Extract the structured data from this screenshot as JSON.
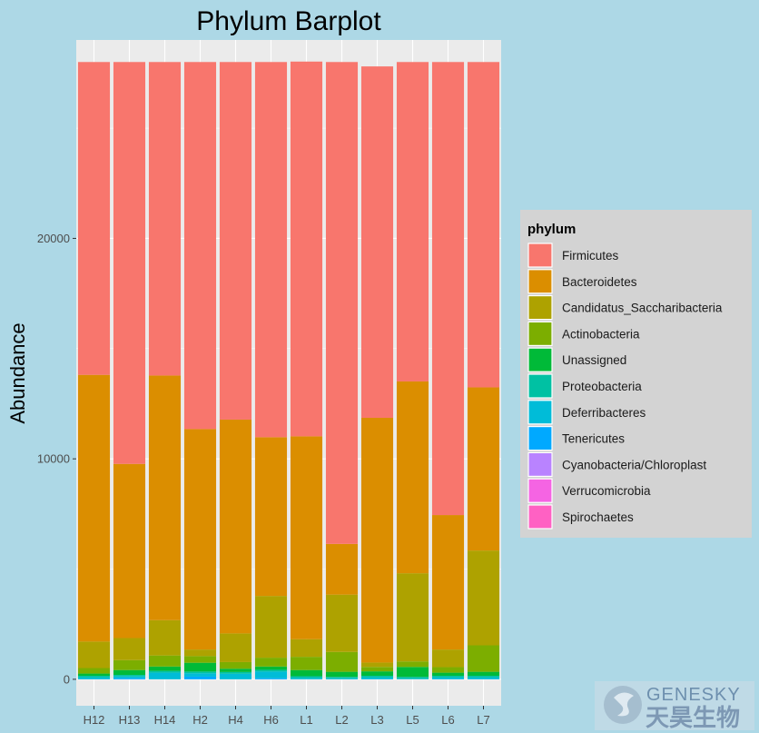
{
  "chart_data": {
    "type": "bar",
    "stacked": true,
    "title": "Phylum Barplot",
    "xlabel": "",
    "ylabel": "Abundance",
    "ylim": [
      -1200,
      29000
    ],
    "yticks": [
      0,
      10000,
      20000
    ],
    "grid": true,
    "legend_position": "right",
    "legend_title": "phylum",
    "categories": [
      "H12",
      "H13",
      "H14",
      "H2",
      "H4",
      "H6",
      "L1",
      "L2",
      "L3",
      "L5",
      "L6",
      "L7"
    ],
    "series": [
      {
        "name": "Spirochaetes",
        "color": "#FF61C3",
        "values": [
          0,
          0,
          0,
          0,
          0,
          0,
          0,
          0,
          0,
          0,
          0,
          0
        ]
      },
      {
        "name": "Verrucomicrobia",
        "color": "#F564E3",
        "values": [
          0,
          0,
          0,
          0,
          0,
          0,
          0,
          0,
          0,
          0,
          0,
          0
        ]
      },
      {
        "name": "Cyanobacteria/Chloroplast",
        "color": "#B983FF",
        "values": [
          0,
          0,
          0,
          0,
          0,
          0,
          0,
          0,
          0,
          0,
          0,
          0
        ]
      },
      {
        "name": "Tenericutes",
        "color": "#00A9FF",
        "values": [
          0,
          50,
          0,
          120,
          0,
          50,
          0,
          0,
          0,
          0,
          0,
          0
        ]
      },
      {
        "name": "Deferribacteres",
        "color": "#00BCD8",
        "values": [
          80,
          80,
          300,
          150,
          250,
          300,
          60,
          50,
          80,
          30,
          80,
          80
        ]
      },
      {
        "name": "Proteobacteria",
        "color": "#00C1A3",
        "values": [
          80,
          70,
          80,
          80,
          80,
          80,
          80,
          60,
          80,
          80,
          80,
          80
        ]
      },
      {
        "name": "Unassigned",
        "color": "#00BA38",
        "values": [
          100,
          220,
          200,
          400,
          150,
          150,
          280,
          230,
          200,
          450,
          140,
          180
        ]
      },
      {
        "name": "Actinobacteria",
        "color": "#7CAE00",
        "values": [
          250,
          450,
          500,
          300,
          300,
          400,
          600,
          900,
          200,
          250,
          250,
          1200
        ]
      },
      {
        "name": "Candidatus_Saccharibacteria",
        "color": "#AEA200",
        "values": [
          1200,
          1000,
          1600,
          300,
          1300,
          2800,
          800,
          2600,
          200,
          4000,
          800,
          4300
        ]
      },
      {
        "name": "Bacteroidetes",
        "color": "#DB8E00",
        "values": [
          12100,
          7900,
          11100,
          10000,
          9700,
          7200,
          9200,
          2300,
          11100,
          8700,
          6100,
          7400
        ]
      },
      {
        "name": "Firmicutes",
        "color": "#F8766D",
        "values": [
          14190,
          18230,
          14220,
          16650,
          16220,
          17020,
          17000,
          21860,
          15940,
          14490,
          20550,
          14760
        ]
      }
    ]
  },
  "watermark": {
    "brand": "GENESKY",
    "chinese": "天昊生物"
  }
}
